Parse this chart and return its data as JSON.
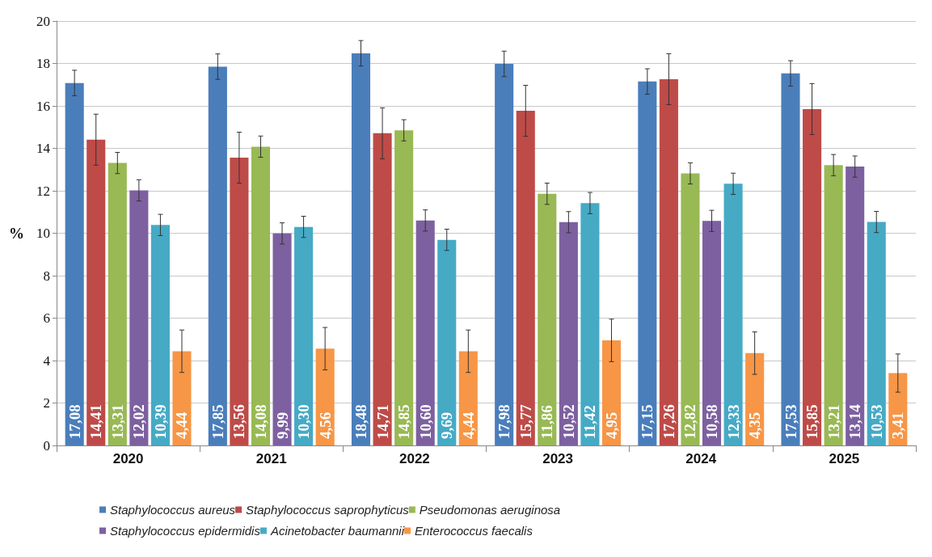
{
  "chart_data": {
    "type": "bar",
    "ylabel": "%",
    "categories": [
      "2020",
      "2021",
      "2022",
      "2023",
      "2024",
      "2025"
    ],
    "ylim": [
      0,
      20
    ],
    "yticks": [
      0,
      2,
      4,
      6,
      8,
      10,
      12,
      14,
      16,
      18,
      20
    ],
    "grid": "y",
    "legend": "bottom",
    "series": [
      {
        "name": "Staphylococcus aureus",
        "color": "#4a7ebb",
        "values": [
          17.08,
          17.85,
          18.48,
          17.98,
          17.15,
          17.53
        ],
        "value_labels": [
          "17,08",
          "17,85",
          "18,48",
          "17,98",
          "17,15",
          "17,53"
        ],
        "errors": [
          0.6,
          0.6,
          0.6,
          0.6,
          0.6,
          0.6
        ]
      },
      {
        "name": "Staphylococcus saprophyticus",
        "color": "#be4b48",
        "values": [
          14.41,
          13.56,
          14.71,
          15.77,
          17.26,
          15.85
        ],
        "value_labels": [
          "14,41",
          "13,56",
          "14,71",
          "15,77",
          "17,26",
          "15,85"
        ],
        "errors": [
          1.2,
          1.2,
          1.2,
          1.2,
          1.2,
          1.2
        ]
      },
      {
        "name": "Pseudomonas aeruginosa",
        "color": "#98b954",
        "values": [
          13.31,
          14.08,
          14.85,
          11.86,
          12.82,
          13.21
        ],
        "value_labels": [
          "13,31",
          "14,08",
          "14,85",
          "11,86",
          "12,82",
          "13,21"
        ],
        "errors": [
          0.5,
          0.5,
          0.5,
          0.5,
          0.5,
          0.5
        ]
      },
      {
        "name": "Staphylococcus epidermidis",
        "color": "#7d60a0",
        "values": [
          12.02,
          9.99,
          10.6,
          10.52,
          10.58,
          13.14
        ],
        "value_labels": [
          "12,02",
          "9,99",
          "10,60",
          "10,52",
          "10,58",
          "13,14"
        ],
        "errors": [
          0.5,
          0.5,
          0.5,
          0.5,
          0.5,
          0.5
        ]
      },
      {
        "name": "Acinetobacter baumannii",
        "color": "#46aac5",
        "values": [
          10.39,
          10.3,
          9.69,
          11.42,
          12.33,
          10.53
        ],
        "value_labels": [
          "10,39",
          "10,30",
          "9,69",
          "11,42",
          "12,33",
          "10,53"
        ],
        "errors": [
          0.5,
          0.5,
          0.5,
          0.5,
          0.5,
          0.5
        ]
      },
      {
        "name": "Enterococcus faecalis",
        "color": "#f79646",
        "values": [
          4.44,
          4.56,
          4.44,
          4.95,
          4.35,
          3.41
        ],
        "value_labels": [
          "4,44",
          "4,56",
          "4,44",
          "4,95",
          "4,35",
          "3,41"
        ],
        "errors": [
          1.0,
          1.0,
          1.0,
          1.0,
          1.0,
          0.9
        ]
      }
    ]
  }
}
